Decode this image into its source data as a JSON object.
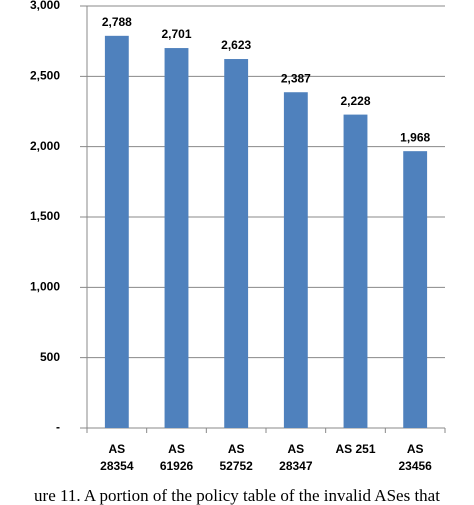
{
  "chart_data": {
    "type": "bar",
    "categories": [
      "AS\n28354",
      "AS\n61926",
      "AS\n52752",
      "AS\n28347",
      "AS 251",
      "AS\n23456"
    ],
    "values": [
      2788,
      2701,
      2623,
      2387,
      2228,
      1968
    ],
    "value_labels": [
      "2,788",
      "2,701",
      "2,623",
      "2,387",
      "2,228",
      "1,968"
    ],
    "color": "#4f81bd",
    "ylim": [
      0,
      3000
    ],
    "yticks": [
      {
        "value": 0,
        "label": "-"
      },
      500,
      {
        "value": 1000,
        "label": "1,000"
      },
      {
        "value": 1500,
        "label": "1,500"
      },
      {
        "value": 2000,
        "label": "2,000"
      },
      {
        "value": 2500,
        "label": "2,500"
      },
      {
        "value": 3000,
        "label": "3,000"
      }
    ],
    "grid": true,
    "caption": "ure 11. A portion of the policy table of the invalid ASes that"
  }
}
